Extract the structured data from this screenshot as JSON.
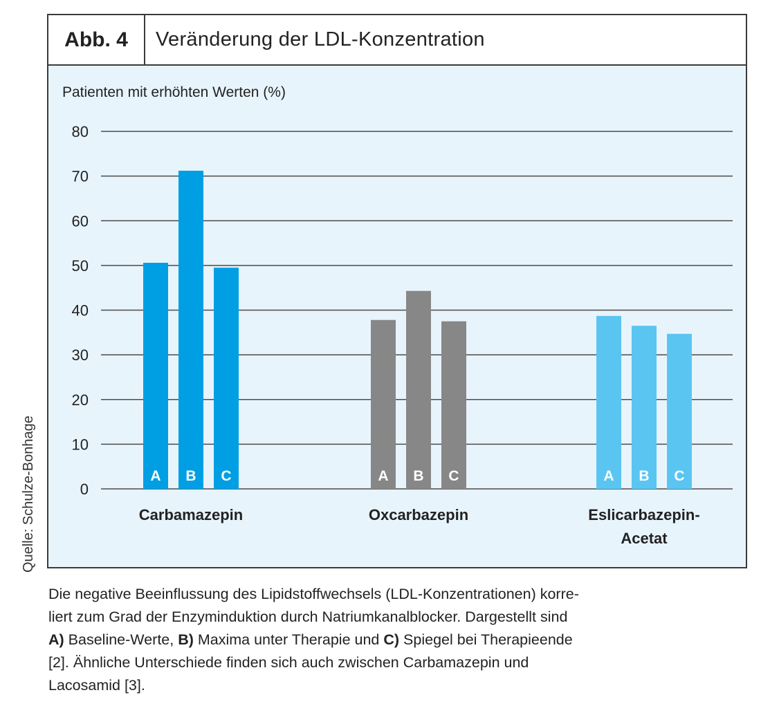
{
  "figure": {
    "label": "Abb. 4",
    "title": "Veränderung der LDL-Konzentration",
    "source": "Quelle: Schulze-Bonhage"
  },
  "chart_data": {
    "type": "bar",
    "title": "Veränderung der LDL-Konzentration",
    "ylabel": "Patienten mit erhöhten Werten (%)",
    "xlabel": "",
    "ylim": [
      0,
      80
    ],
    "yticks": [
      0,
      10,
      20,
      30,
      40,
      50,
      60,
      70,
      80
    ],
    "grid": true,
    "groups": [
      {
        "name": "Carbamazepin",
        "name_lines": [
          "Carbamazepin"
        ],
        "color": "#009fe3",
        "bars": [
          {
            "label": "A",
            "value": 50.6
          },
          {
            "label": "B",
            "value": 71.2
          },
          {
            "label": "C",
            "value": 49.5
          }
        ]
      },
      {
        "name": "Oxcarbazepin",
        "name_lines": [
          "Oxcarbazepin"
        ],
        "color": "#878787",
        "bars": [
          {
            "label": "A",
            "value": 37.8
          },
          {
            "label": "B",
            "value": 44.3
          },
          {
            "label": "C",
            "value": 37.5
          }
        ]
      },
      {
        "name": "Eslicarbazepin-Acetat",
        "name_lines": [
          "Eslicarbazepin-",
          "Acetat"
        ],
        "color": "#5bc5f2",
        "bars": [
          {
            "label": "A",
            "value": 38.7
          },
          {
            "label": "B",
            "value": 36.5
          },
          {
            "label": "C",
            "value": 34.7
          }
        ]
      }
    ],
    "bar_legend": {
      "A": "Baseline-Werte",
      "B": "Maxima unter Therapie",
      "C": "Spiegel bei Therapieende"
    }
  },
  "caption": {
    "line1": "Die negative Beeinflussung des Lipidstoffwechsels (LDL-Konzentrationen) korre-",
    "line2": "liert zum Grad der Enzyminduktion durch Natriumkanalblocker. Dargestellt sind",
    "line3_a_key": "A)",
    "line3_a_text": " Baseline-Werte, ",
    "line3_b_key": "B)",
    "line3_b_text": " Maxima unter Therapie und ",
    "line3_c_key": "C)",
    "line3_c_text": " Spiegel bei Therapieende",
    "line4": "[2]. Ähnliche Unterschiede finden sich auch zwischen Carbamazepin und",
    "line5": "Lacosamid [3]."
  }
}
